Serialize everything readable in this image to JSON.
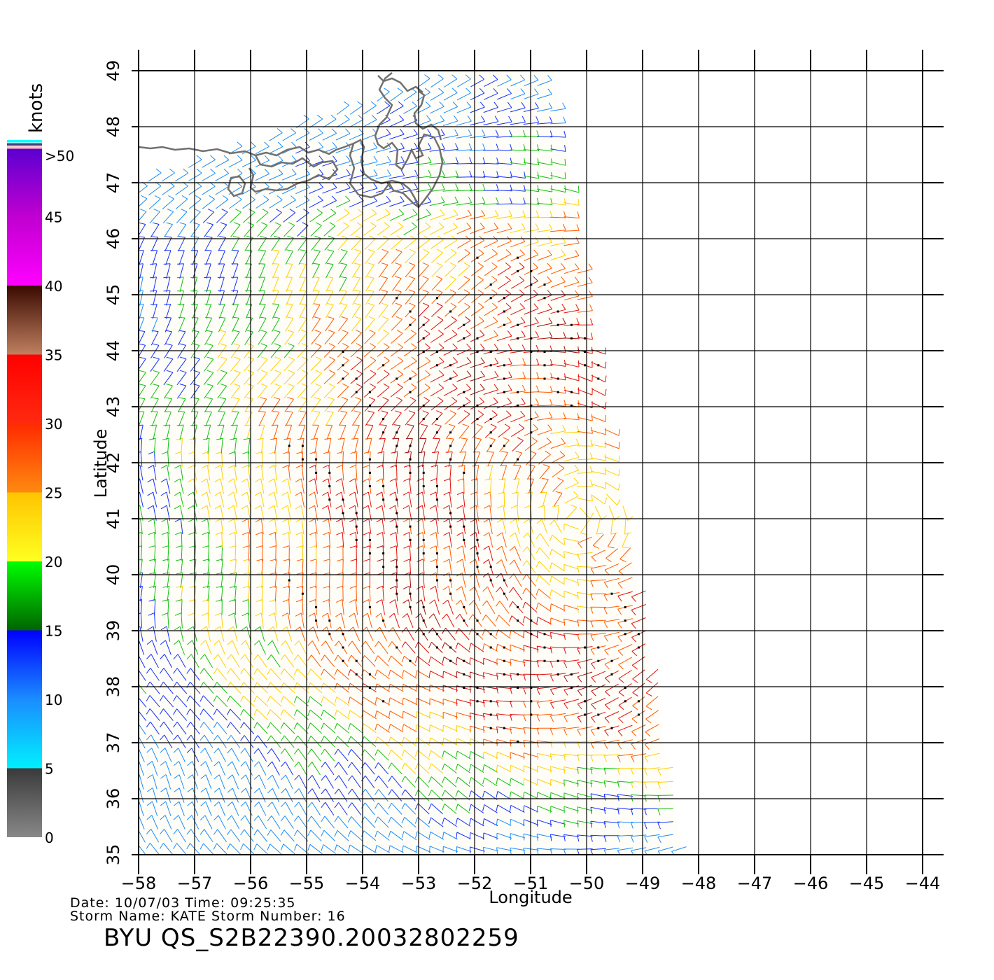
{
  "legend": {
    "unit_label": "knots",
    "levels": [
      {
        "label": "0",
        "from": 0,
        "to": 5,
        "top_color": "#3a3a3a",
        "bottom_color": "#888888"
      },
      {
        "label": "5",
        "from": 5,
        "to": 10,
        "top_color": "#1a8cff",
        "bottom_color": "#00f0ff"
      },
      {
        "label": "10",
        "from": 10,
        "to": 15,
        "top_color": "#0000ff",
        "bottom_color": "#1a8cff"
      },
      {
        "label": "15",
        "from": 15,
        "to": 20,
        "top_color": "#00ff00",
        "bottom_color": "#006400"
      },
      {
        "label": "20",
        "from": 20,
        "to": 25,
        "top_color": "#ffc400",
        "bottom_color": "#ffff20"
      },
      {
        "label": "25",
        "from": 25,
        "to": 30,
        "top_color": "#ff2a00",
        "bottom_color": "#ff8a10"
      },
      {
        "label": "30",
        "from": 30,
        "to": 35,
        "top_color": "#ff0000",
        "bottom_color": "#ff2a10"
      },
      {
        "label": "35",
        "from": 35,
        "to": 40,
        "top_color": "#3a0a00",
        "bottom_color": "#c08060"
      },
      {
        "label": "40",
        "from": 40,
        "to": 45,
        "top_color": "#c000d0",
        "bottom_color": "#ff00ff"
      },
      {
        "label": "45",
        "from": 45,
        "to": 50,
        "top_color": "#5a00d0",
        "bottom_color": "#c000d0"
      },
      {
        "label": ">50",
        "from": 50,
        "to": null,
        "top_color": "#5a00d0",
        "bottom_color": "#5a00d0"
      }
    ],
    "top_stripes": [
      "#00ffff",
      "#40407f",
      "#ffc0c0"
    ]
  },
  "map": {
    "x_axis_title": "Longitude",
    "y_axis_title": "Latitude",
    "lon_range": [
      -58,
      -44
    ],
    "lat_range": [
      35,
      49
    ],
    "lon_ticks": [
      "−58",
      "−57",
      "−56",
      "−55",
      "−54",
      "−53",
      "−52",
      "−51",
      "−50",
      "−49",
      "−48",
      "−47",
      "−46",
      "−45",
      "−44"
    ],
    "lat_ticks": [
      "35",
      "36",
      "37",
      "38",
      "39",
      "40",
      "41",
      "42",
      "43",
      "44",
      "45",
      "46",
      "47",
      "48",
      "49"
    ],
    "grid": true,
    "swath_lonlat": [
      [
        -52.5,
        49
      ],
      [
        -50.6,
        49
      ],
      [
        -48.3,
        35
      ],
      [
        -55.5,
        35
      ],
      [
        -58,
        35
      ],
      [
        -58,
        47
      ]
    ],
    "coast_color": "#707070",
    "wind_field": {
      "center_lon": -50.2,
      "center_lat": 41.0,
      "barb_spacing_deg": 0.24
    }
  },
  "info": {
    "date_line": "Date: 10/07/03   Time: 09:25:35",
    "storm_line": "Storm  Name: KATE   Storm  Number: 16",
    "product_id": "BYU  QS_S2B22390.20032802259"
  }
}
